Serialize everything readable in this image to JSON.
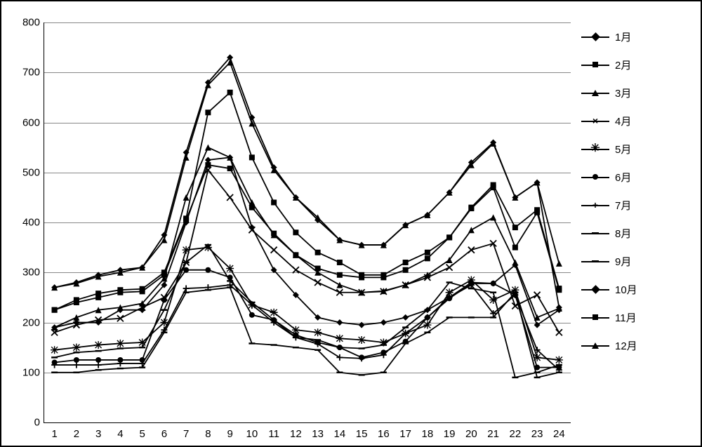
{
  "chart": {
    "type": "line",
    "background_color": "#ffffff",
    "border_color": "#000000",
    "grid_color": "#888888",
    "line_color": "#000000",
    "text_color": "#000000",
    "label_fontsize": 15,
    "ylim": [
      0,
      800
    ],
    "ytick_step": 100,
    "x_categories": [
      "1",
      "2",
      "3",
      "4",
      "5",
      "6",
      "7",
      "8",
      "9",
      "10",
      "11",
      "12",
      "13",
      "14",
      "15",
      "16",
      "17",
      "18",
      "19",
      "20",
      "21",
      "22",
      "23",
      "24"
    ],
    "yticks": [
      "0",
      "100",
      "200",
      "300",
      "400",
      "500",
      "600",
      "700",
      "800"
    ],
    "legend_items": [
      {
        "label": "1月",
        "marker": "diamond"
      },
      {
        "label": "2月",
        "marker": "square"
      },
      {
        "label": "3月",
        "marker": "triangle"
      },
      {
        "label": "4月",
        "marker": "x"
      },
      {
        "label": "5月",
        "marker": "asterisk"
      },
      {
        "label": "6月",
        "marker": "circle"
      },
      {
        "label": "7月",
        "marker": "plus"
      },
      {
        "label": "8月",
        "marker": "dash"
      },
      {
        "label": "9月",
        "marker": "dash"
      },
      {
        "label": "10月",
        "marker": "diamond"
      },
      {
        "label": "11月",
        "marker": "square"
      },
      {
        "label": "12月",
        "marker": "triangle"
      }
    ],
    "series": [
      {
        "name": "1月",
        "marker": "diamond",
        "values": [
          270,
          280,
          295,
          305,
          310,
          375,
          540,
          680,
          730,
          610,
          510,
          450,
          405,
          365,
          355,
          355,
          395,
          415,
          460,
          520,
          560,
          450,
          480,
          230
        ]
      },
      {
        "name": "2月",
        "marker": "square",
        "values": [
          225,
          245,
          258,
          265,
          267,
          300,
          408,
          620,
          660,
          530,
          440,
          380,
          340,
          320,
          295,
          295,
          320,
          340,
          370,
          430,
          475,
          390,
          425,
          268
        ]
      },
      {
        "name": "3月",
        "marker": "triangle",
        "values": [
          270,
          278,
          292,
          300,
          310,
          365,
          530,
          675,
          720,
          598,
          505,
          450,
          410,
          365,
          355,
          355,
          395,
          415,
          460,
          515,
          558,
          450,
          480,
          318
        ]
      },
      {
        "name": "4月",
        "marker": "x",
        "values": [
          180,
          195,
          205,
          208,
          230,
          250,
          320,
          505,
          450,
          385,
          345,
          305,
          280,
          260,
          260,
          262,
          275,
          290,
          310,
          345,
          358,
          233,
          255,
          180
        ]
      },
      {
        "name": "5月",
        "marker": "asterisk",
        "values": [
          145,
          150,
          155,
          158,
          160,
          200,
          345,
          350,
          308,
          235,
          220,
          185,
          180,
          168,
          165,
          160,
          178,
          195,
          260,
          285,
          245,
          265,
          130,
          125
        ]
      },
      {
        "name": "6月",
        "marker": "circle",
        "values": [
          120,
          125,
          125,
          125,
          125,
          245,
          305,
          305,
          290,
          215,
          205,
          175,
          160,
          150,
          130,
          140,
          162,
          210,
          248,
          278,
          278,
          255,
          110,
          110
        ]
      },
      {
        "name": "7月",
        "marker": "plus",
        "values": [
          115,
          115,
          115,
          118,
          118,
          185,
          268,
          270,
          275,
          235,
          200,
          170,
          157,
          130,
          128,
          135,
          178,
          210,
          250,
          275,
          218,
          255,
          145,
          105
        ]
      },
      {
        "name": "8月",
        "marker": "dash",
        "values": [
          100,
          100,
          105,
          108,
          110,
          180,
          260,
          265,
          270,
          158,
          155,
          150,
          145,
          100,
          95,
          100,
          158,
          180,
          210,
          210,
          210,
          260,
          90,
          100
        ]
      },
      {
        "name": "9月",
        "marker": "dash",
        "values": [
          130,
          140,
          143,
          148,
          150,
          225,
          320,
          355,
          283,
          240,
          205,
          170,
          165,
          150,
          148,
          155,
          190,
          225,
          280,
          268,
          260,
          90,
          100,
          115
        ]
      },
      {
        "name": "10月",
        "marker": "diamond",
        "values": [
          190,
          200,
          200,
          225,
          225,
          275,
          400,
          525,
          530,
          390,
          305,
          255,
          210,
          200,
          195,
          200,
          210,
          225,
          250,
          280,
          278,
          315,
          195,
          225
        ]
      },
      {
        "name": "11月",
        "marker": "square",
        "values": [
          225,
          240,
          250,
          260,
          262,
          295,
          405,
          515,
          508,
          430,
          378,
          335,
          308,
          295,
          290,
          290,
          305,
          328,
          370,
          428,
          470,
          350,
          420,
          265
        ]
      },
      {
        "name": "12月",
        "marker": "triangle",
        "values": [
          190,
          210,
          225,
          230,
          238,
          288,
          450,
          550,
          530,
          440,
          375,
          335,
          300,
          275,
          260,
          263,
          275,
          295,
          325,
          385,
          410,
          320,
          210,
          228
        ]
      }
    ]
  }
}
